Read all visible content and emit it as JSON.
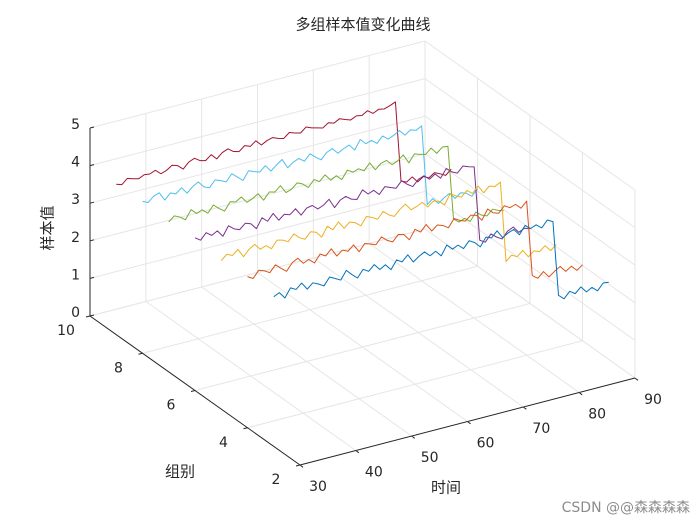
{
  "chart_data": {
    "type": "line3d",
    "title": "多组样本值变化曲线",
    "xlabel": "时间",
    "ylabel": "组别",
    "zlabel": "样本值",
    "xlim": [
      30,
      90
    ],
    "ylim": [
      2,
      10
    ],
    "zlim": [
      0,
      5
    ],
    "xticks": [
      30,
      40,
      50,
      60,
      70,
      80,
      90
    ],
    "yticks": [
      2,
      4,
      6,
      8,
      10
    ],
    "zticks": [
      0,
      1,
      2,
      3,
      4,
      5
    ],
    "grid": true,
    "x": [
      30,
      31,
      32,
      33,
      34,
      35,
      36,
      37,
      38,
      39,
      40,
      41,
      42,
      43,
      44,
      45,
      46,
      47,
      48,
      49,
      50,
      51,
      52,
      53,
      54,
      55,
      56,
      57,
      58,
      59,
      60,
      61,
      62,
      63,
      64,
      65,
      66,
      67,
      68,
      69,
      70,
      71,
      72,
      73,
      74,
      75,
      76,
      77,
      78,
      79,
      80,
      81,
      82,
      83,
      84,
      85,
      86,
      87,
      88,
      89,
      90
    ],
    "series": [
      {
        "color": "#0072BD",
        "y": 3,
        "values": [
          3.98,
          4.05,
          3.87,
          4.1,
          4.02,
          4.15,
          3.95,
          4.08,
          4.01,
          3.92,
          4.12,
          4.04,
          3.96,
          4.18,
          4.03,
          3.9,
          4.09,
          4.0,
          4.14,
          3.97,
          4.06,
          3.89,
          4.11,
          4.02,
          4.17,
          3.94,
          4.05,
          4.13,
          3.99,
          4.07,
          3.91,
          4.16,
          4.01,
          4.08,
          3.95,
          4.12,
          4.03,
          3.88,
          4.1,
          4.04,
          4.19,
          3.97,
          4.06,
          4.11,
          3.93,
          4.14,
          4.02,
          4.08,
          3.96,
          4.13,
          4.05,
          2.05,
          1.92,
          2.08,
          1.98,
          2.12,
          1.95,
          2.03,
          1.9,
          2.07,
          2.05
        ]
      },
      {
        "color": "#D95319",
        "y": 4,
        "values": [
          4.02,
          3.93,
          4.11,
          4.06,
          3.97,
          4.14,
          4.01,
          3.89,
          4.08,
          4.16,
          3.99,
          4.05,
          3.92,
          4.12,
          4.03,
          4.18,
          3.95,
          4.07,
          4.0,
          4.13,
          3.91,
          4.09,
          4.04,
          3.98,
          4.15,
          4.02,
          3.94,
          4.1,
          4.06,
          3.88,
          4.12,
          4.01,
          4.17,
          3.96,
          4.08,
          4.03,
          3.93,
          4.14,
          4.05,
          3.99,
          4.11,
          4.07,
          3.9,
          4.16,
          4.02,
          3.97,
          4.13,
          4.04,
          4.09,
          3.95,
          4.1,
          2.08,
          1.97,
          2.11,
          1.93,
          2.04,
          2.13,
          1.96,
          2.06,
          1.91,
          2.02
        ]
      },
      {
        "color": "#EDB120",
        "y": 5,
        "values": [
          3.95,
          4.08,
          4.01,
          4.13,
          3.9,
          4.06,
          4.15,
          3.98,
          4.04,
          3.92,
          4.11,
          4.07,
          3.99,
          4.16,
          4.02,
          3.94,
          4.1,
          4.05,
          3.88,
          4.13,
          4.0,
          4.17,
          3.96,
          4.09,
          4.03,
          3.91,
          4.12,
          4.06,
          3.97,
          4.14,
          4.01,
          3.93,
          4.08,
          4.18,
          3.99,
          4.04,
          4.11,
          3.95,
          4.07,
          4.02,
          3.89,
          4.15,
          4.05,
          3.98,
          4.12,
          4.0,
          4.16,
          3.94,
          4.08,
          4.03,
          4.11,
          1.96,
          2.09,
          2.01,
          2.14,
          1.93,
          2.05,
          1.99,
          2.11,
          1.94,
          2.07
        ]
      },
      {
        "color": "#7E2F8E",
        "y": 6,
        "values": [
          4.06,
          3.96,
          4.12,
          4.01,
          4.09,
          3.91,
          4.15,
          4.03,
          3.97,
          4.1,
          4.05,
          3.88,
          4.13,
          4.0,
          4.17,
          3.95,
          4.07,
          4.02,
          4.14,
          3.93,
          4.08,
          4.11,
          3.98,
          4.04,
          4.16,
          3.9,
          4.06,
          4.12,
          4.01,
          3.96,
          4.18,
          4.03,
          4.09,
          3.94,
          4.11,
          4.05,
          3.99,
          4.15,
          4.02,
          3.92,
          4.07,
          4.13,
          4.0,
          4.1,
          3.95,
          4.17,
          4.04,
          3.97,
          4.12,
          4.06,
          4.02,
          2.03,
          1.94,
          2.12,
          2.0,
          1.91,
          2.08,
          2.15,
          1.97,
          2.04,
          1.99
        ]
      },
      {
        "color": "#77AC30",
        "y": 7,
        "values": [
          3.99,
          4.11,
          4.04,
          3.93,
          4.16,
          4.02,
          4.08,
          3.95,
          4.13,
          4.0,
          3.89,
          4.1,
          4.06,
          4.15,
          3.97,
          4.03,
          4.12,
          3.91,
          4.09,
          4.05,
          4.18,
          3.96,
          4.01,
          4.14,
          4.07,
          3.94,
          4.11,
          4.02,
          4.16,
          3.98,
          4.06,
          3.92,
          4.13,
          4.04,
          4.09,
          4.0,
          4.17,
          3.95,
          4.08,
          4.12,
          3.97,
          4.03,
          4.15,
          3.9,
          4.1,
          4.05,
          4.01,
          4.14,
          3.96,
          4.09,
          4.07,
          2.1,
          1.98,
          2.04,
          1.92,
          2.13,
          2.01,
          1.95,
          2.09,
          2.02,
          1.97
        ]
      },
      {
        "color": "#4DBEEE",
        "y": 8,
        "values": [
          4.04,
          3.97,
          4.1,
          4.15,
          3.92,
          4.07,
          4.01,
          4.13,
          3.95,
          4.09,
          4.17,
          4.0,
          3.94,
          4.11,
          4.05,
          3.98,
          4.16,
          4.03,
          3.9,
          4.12,
          4.06,
          4.01,
          4.14,
          3.96,
          4.08,
          4.19,
          3.93,
          4.04,
          4.1,
          3.99,
          4.15,
          4.02,
          3.91,
          4.07,
          4.13,
          3.97,
          4.05,
          4.11,
          3.94,
          4.18,
          4.03,
          4.08,
          3.96,
          4.12,
          4.0,
          4.06,
          4.15,
          3.99,
          4.09,
          4.04,
          4.12,
          1.99,
          2.11,
          1.94,
          2.05,
          2.13,
          1.96,
          2.07,
          2.02,
          1.9,
          2.06
        ]
      },
      {
        "color": "#A2142F",
        "y": 9,
        "values": [
          4.0,
          3.95,
          4.08,
          4.03,
          3.99,
          4.06,
          4.04,
          4.1,
          3.97,
          4.02,
          4.12,
          4.07,
          3.94,
          4.09,
          4.15,
          4.05,
          4.01,
          4.13,
          3.98,
          4.11,
          4.17,
          4.06,
          4.02,
          4.14,
          4.08,
          4.19,
          4.04,
          4.12,
          4.16,
          4.1,
          4.06,
          4.18,
          4.13,
          4.09,
          4.21,
          4.15,
          4.11,
          4.07,
          4.17,
          4.12,
          4.2,
          4.14,
          4.09,
          4.16,
          4.13,
          4.22,
          4.11,
          4.18,
          4.15,
          4.2,
          4.26,
          2.12,
          2.05,
          2.15,
          1.98,
          2.08,
          2.01,
          2.11,
          2.04,
          1.96,
          2.09
        ]
      }
    ],
    "watermark": "CSDN @@森森森森"
  }
}
